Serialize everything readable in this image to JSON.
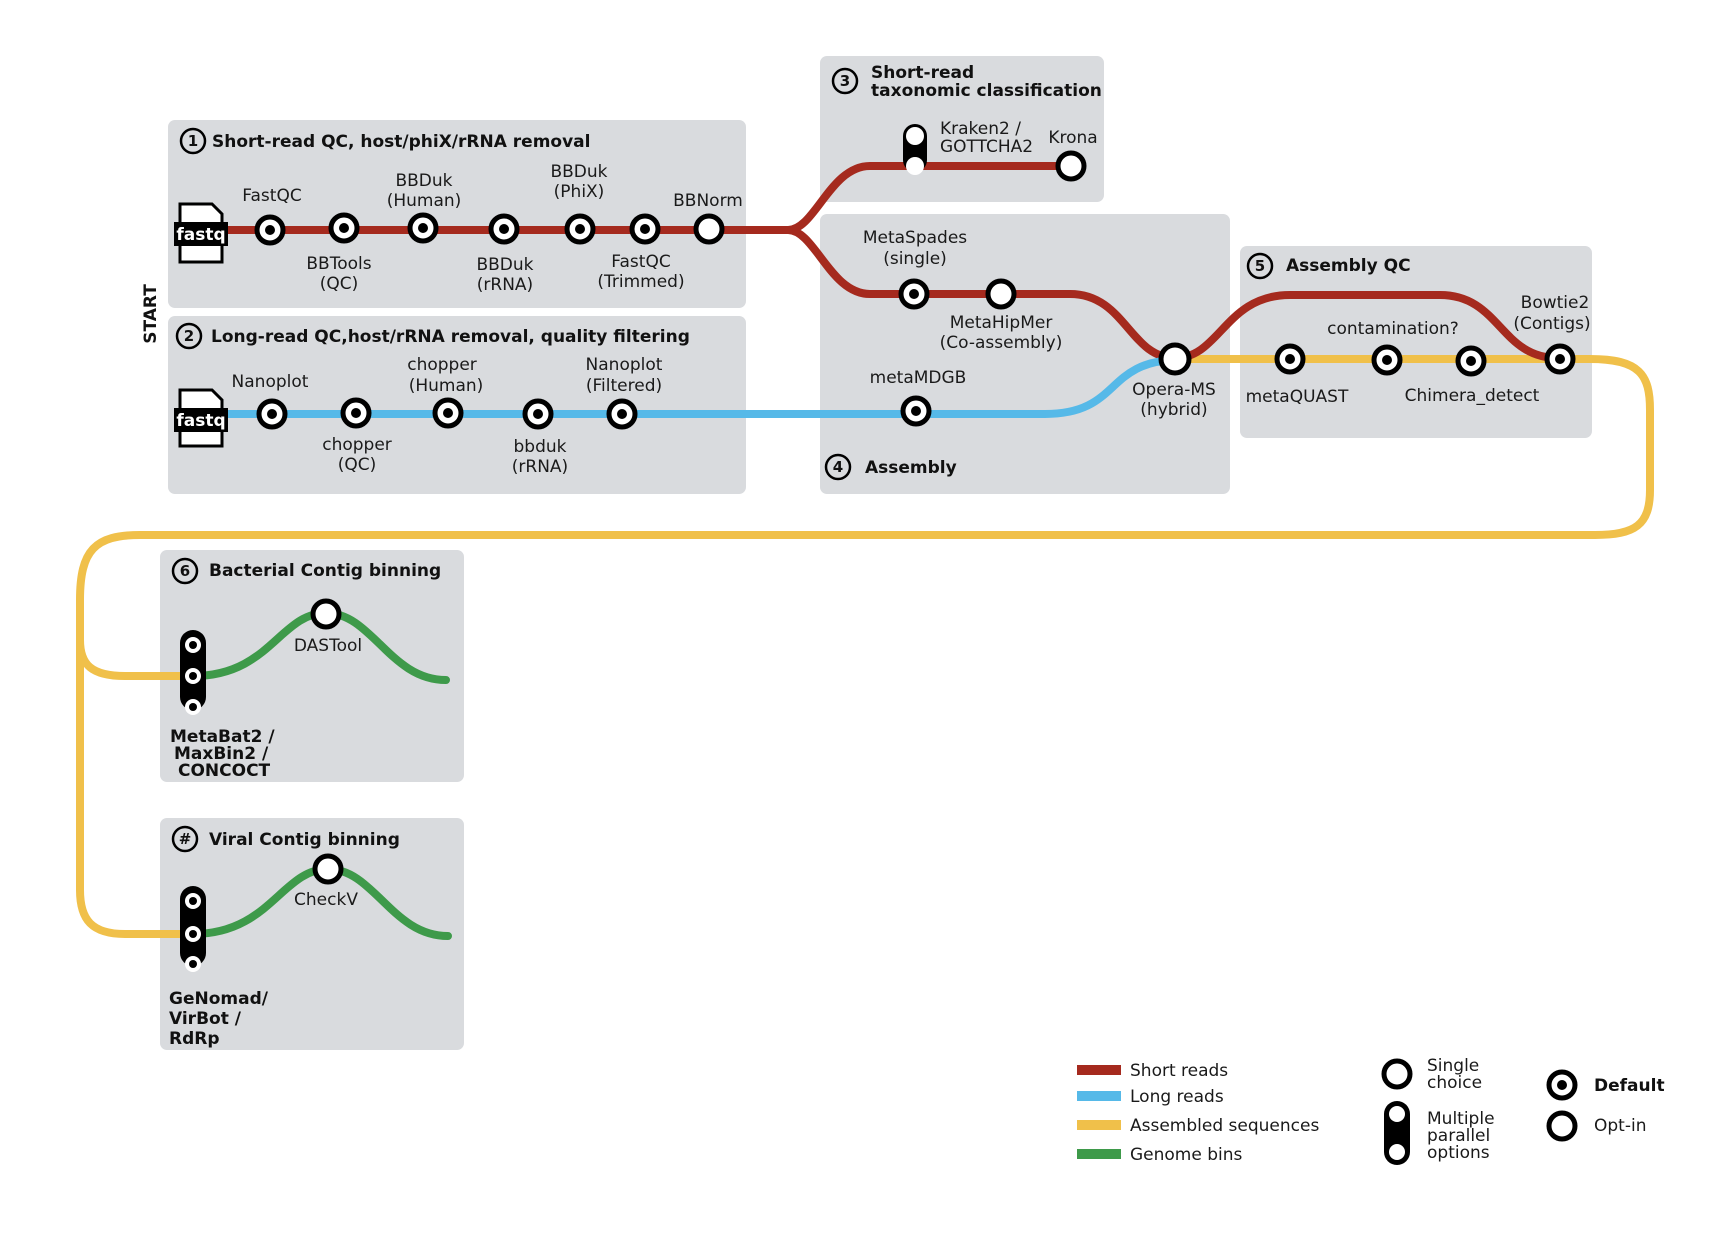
{
  "colors": {
    "short_reads": "#a52a1e",
    "long_reads": "#56b9e8",
    "assembled": "#f0c04a",
    "bins": "#3e9a4a",
    "box": "#d9dbde"
  },
  "start_label": "START",
  "file_label": "fastq",
  "sections": {
    "s1": {
      "num": "1",
      "title": "Short-read QC, host/phiX/rRNA removal"
    },
    "s2": {
      "num": "2",
      "title": "Long-read QC,host/rRNA removal, quality filtering"
    },
    "s3": {
      "num": "3",
      "title_l1": "Short-read",
      "title_l2": "taxonomic classification"
    },
    "s4": {
      "num": "4",
      "title": "Assembly"
    },
    "s5": {
      "num": "5",
      "title": "Assembly QC"
    },
    "s6": {
      "num": "6",
      "title": "Bacterial Contig binning"
    },
    "s7": {
      "num": "#",
      "title": "Viral Contig binning"
    }
  },
  "stations": {
    "fastqc": "FastQC",
    "bbtools_l1": "BBTools",
    "bbtools_l2": "(QC)",
    "bbduk_h_l1": "BBDuk",
    "bbduk_h_l2": "(Human)",
    "bbduk_r_l1": "BBDuk",
    "bbduk_r_l2": "(rRNA)",
    "bbduk_p_l1": "BBDuk",
    "bbduk_p_l2": "(PhiX)",
    "fastqc_t_l1": "FastQC",
    "fastqc_t_l2": "(Trimmed)",
    "bbnorm": "BBNorm",
    "nanoplot": "Nanoplot",
    "chopper_qc_l1": "chopper",
    "chopper_qc_l2": "(QC)",
    "chopper_h_l1": "chopper",
    "chopper_h_l2": "(Human)",
    "bbduk_lr_l1": "bbduk",
    "bbduk_lr_l2": "(rRNA)",
    "nanoplot_f_l1": "Nanoplot",
    "nanoplot_f_l2": "(Filtered)",
    "kraken_l1": "Kraken2 /",
    "kraken_l2": "GOTTCHA2",
    "krona": "Krona",
    "metaspades_l1": "MetaSpades",
    "metaspades_l2": "(single)",
    "metahipmer_l1": "MetaHipMer",
    "metahipmer_l2": "(Co-assembly)",
    "metamdgb": "metaMDGB",
    "operams_l1": "Opera-MS",
    "operams_l2": "(hybrid)",
    "metaquast": "metaQUAST",
    "contamination": "contamination?",
    "chimera": "Chimera_detect",
    "bowtie_l1": "Bowtie2",
    "bowtie_l2": "(Contigs)",
    "dastool": "DASTool",
    "metabat_l1": "MetaBat2 /",
    "metabat_l2": "MaxBin2 /",
    "metabat_l3": "CONCOCT",
    "checkv": "CheckV",
    "genomad_l1": "GeNomad/",
    "genomad_l2": "VirBot /",
    "genomad_l3": "RdRp"
  },
  "legend": {
    "short_reads": "Short reads",
    "long_reads": "Long reads",
    "assembled": "Assembled sequences",
    "bins": "Genome bins",
    "single_l1": "Single",
    "single_l2": "choice",
    "multi_l1": "Multiple",
    "multi_l2": "parallel",
    "multi_l3": "options",
    "default": "Default",
    "optin": "Opt-in"
  }
}
